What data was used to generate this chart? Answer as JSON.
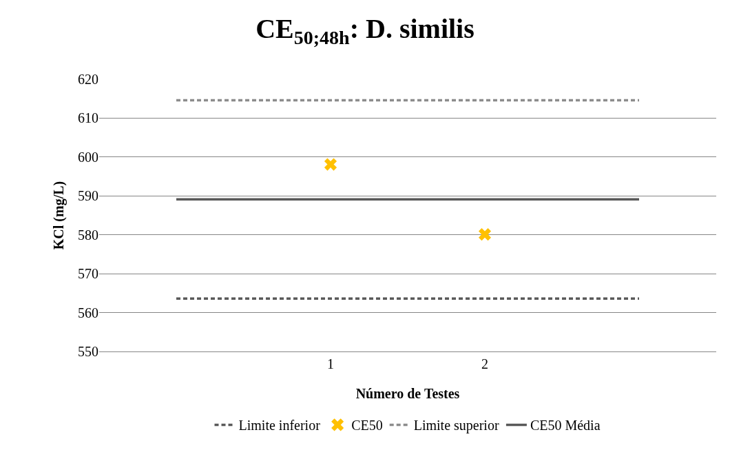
{
  "chart_data": {
    "type": "line",
    "title": "CE$_{50;48h}$: D. similis",
    "xlabel": "Número de Testes",
    "ylabel": "KCl (mg/L)",
    "categories": [
      null,
      "1",
      "2",
      null
    ],
    "series": [
      {
        "name": "Limite inferior",
        "color": "#595959",
        "line_style": "dashed",
        "marker": "none",
        "values": [
          563.6,
          563.6,
          563.6,
          563.6
        ]
      },
      {
        "name": "CE50",
        "type": "scatter",
        "color": "#ffc000",
        "marker": "cross",
        "values": [
          null,
          598.1,
          580.1,
          null
        ]
      },
      {
        "name": "Limite superior",
        "color": "#8c8c8c",
        "line_style": "dashed",
        "marker": "none",
        "values": [
          614.6,
          614.6,
          614.6,
          614.6
        ]
      },
      {
        "name": "CE50 Média",
        "color": "#595959",
        "line_style": "solid",
        "marker": "none",
        "values": [
          589.1,
          589.1,
          589.1,
          589.1
        ]
      }
    ],
    "ylim": [
      550,
      620
    ],
    "yticks": [
      550,
      560,
      570,
      580,
      590,
      600,
      610,
      620
    ],
    "grid": "y",
    "legend": "bottom"
  }
}
